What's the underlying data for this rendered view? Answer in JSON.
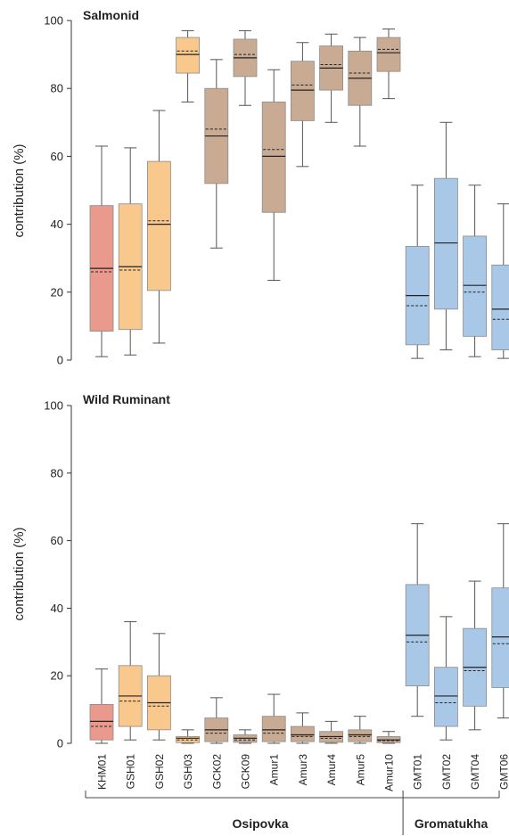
{
  "chart_data": [
    {
      "type": "box",
      "title": "Salmonid",
      "ylabel": "contribution (%)",
      "ylim": [
        0,
        100
      ],
      "yticks": [
        0,
        20,
        40,
        60,
        80,
        100
      ],
      "boxes": [
        {
          "category": "KHM01",
          "color": "#ea9a8c",
          "min": 1,
          "q1": 8.5,
          "median": 27,
          "mean": 26,
          "q3": 45.5,
          "max": 63
        },
        {
          "category": "GSH01",
          "color": "#f8c88c",
          "min": 1.5,
          "q1": 9,
          "median": 27.5,
          "mean": 26.5,
          "q3": 46,
          "max": 62.5
        },
        {
          "category": "GSH02",
          "color": "#f8c88c",
          "min": 5,
          "q1": 20.5,
          "median": 40,
          "mean": 41,
          "q3": 58.5,
          "max": 73.5
        },
        {
          "category": "GSH03",
          "color": "#f8c88c",
          "min": 76,
          "q1": 84.5,
          "median": 90,
          "mean": 91,
          "q3": 95,
          "max": 97
        },
        {
          "category": "GCK02",
          "color": "#c9ab93",
          "min": 33,
          "q1": 52,
          "median": 66,
          "mean": 68,
          "q3": 80,
          "max": 88.5
        },
        {
          "category": "GCK09",
          "color": "#c9ab93",
          "min": 75,
          "q1": 83.5,
          "median": 89,
          "mean": 90,
          "q3": 94.5,
          "max": 97
        },
        {
          "category": "Amur1",
          "color": "#c9ab93",
          "min": 23.5,
          "q1": 43.5,
          "median": 60,
          "mean": 62,
          "q3": 76,
          "max": 85.5
        },
        {
          "category": "Amur3",
          "color": "#c9ab93",
          "min": 57,
          "q1": 70.5,
          "median": 79.5,
          "mean": 81,
          "q3": 88,
          "max": 93.5
        },
        {
          "category": "Amur4",
          "color": "#c9ab93",
          "min": 70,
          "q1": 79.5,
          "median": 86,
          "mean": 87,
          "q3": 92.5,
          "max": 96
        },
        {
          "category": "Amur5",
          "color": "#c9ab93",
          "min": 63,
          "q1": 75,
          "median": 83,
          "mean": 84.5,
          "q3": 91,
          "max": 95
        },
        {
          "category": "Amur10",
          "color": "#c9ab93",
          "min": 77,
          "q1": 85,
          "median": 90.5,
          "mean": 91.5,
          "q3": 95,
          "max": 97.5
        },
        {
          "category": "GMT01",
          "color": "#a9c8e8",
          "min": 0.5,
          "q1": 4.5,
          "median": 19,
          "mean": 16,
          "q3": 33.5,
          "max": 51.5
        },
        {
          "category": "GMT02",
          "color": "#a9c8e8",
          "min": 3,
          "q1": 15,
          "median": 34.5,
          "mean": 34.5,
          "q3": 53.5,
          "max": 70
        },
        {
          "category": "GMT04",
          "color": "#a9c8e8",
          "min": 1,
          "q1": 7,
          "median": 22,
          "mean": 20,
          "q3": 36.5,
          "max": 51.5
        },
        {
          "category": "GMT06",
          "color": "#a9c8e8",
          "min": 0.5,
          "q1": 3,
          "median": 15,
          "mean": 12,
          "q3": 28,
          "max": 46
        }
      ]
    },
    {
      "type": "box",
      "title": "Wild Ruminant",
      "ylabel": "contribution (%)",
      "ylim": [
        0,
        100
      ],
      "yticks": [
        0,
        20,
        40,
        60,
        80,
        100
      ],
      "boxes": [
        {
          "category": "KHM01",
          "color": "#ea9a8c",
          "min": 0,
          "q1": 1,
          "median": 6.5,
          "mean": 5,
          "q3": 11.5,
          "max": 22
        },
        {
          "category": "GSH01",
          "color": "#f8c88c",
          "min": 1,
          "q1": 5,
          "median": 14,
          "mean": 12.5,
          "q3": 23,
          "max": 36
        },
        {
          "category": "GSH02",
          "color": "#f8c88c",
          "min": 1,
          "q1": 4,
          "median": 12,
          "mean": 11,
          "q3": 20,
          "max": 32.5
        },
        {
          "category": "GSH03",
          "color": "#f8c88c",
          "min": 0,
          "q1": 0.2,
          "median": 1.5,
          "mean": 1,
          "q3": 2,
          "max": 4
        },
        {
          "category": "GCK02",
          "color": "#c9ab93",
          "min": 0,
          "q1": 0.5,
          "median": 4,
          "mean": 3,
          "q3": 7.5,
          "max": 13.5
        },
        {
          "category": "GCK09",
          "color": "#c9ab93",
          "min": 0,
          "q1": 0.3,
          "median": 1.5,
          "mean": 1,
          "q3": 2.5,
          "max": 4
        },
        {
          "category": "Amur1",
          "color": "#c9ab93",
          "min": 0,
          "q1": 0.5,
          "median": 4,
          "mean": 3,
          "q3": 8,
          "max": 14.5
        },
        {
          "category": "Amur3",
          "color": "#c9ab93",
          "min": 0,
          "q1": 0.5,
          "median": 2.5,
          "mean": 2,
          "q3": 5,
          "max": 9
        },
        {
          "category": "Amur4",
          "color": "#c9ab93",
          "min": 0,
          "q1": 0.3,
          "median": 2,
          "mean": 1.5,
          "q3": 3.5,
          "max": 6.5
        },
        {
          "category": "Amur5",
          "color": "#c9ab93",
          "min": 0,
          "q1": 0.5,
          "median": 2.5,
          "mean": 2,
          "q3": 4,
          "max": 8
        },
        {
          "category": "Amur10",
          "color": "#c9ab93",
          "min": 0,
          "q1": 0.2,
          "median": 1,
          "mean": 0.8,
          "q3": 2,
          "max": 3.5
        },
        {
          "category": "GMT01",
          "color": "#a9c8e8",
          "min": 8,
          "q1": 17,
          "median": 32,
          "mean": 30,
          "q3": 47,
          "max": 65
        },
        {
          "category": "GMT02",
          "color": "#a9c8e8",
          "min": 1,
          "q1": 5,
          "median": 14,
          "mean": 12,
          "q3": 22.5,
          "max": 37.5
        },
        {
          "category": "GMT04",
          "color": "#a9c8e8",
          "min": 4,
          "q1": 11,
          "median": 22.5,
          "mean": 21.5,
          "q3": 34,
          "max": 48
        },
        {
          "category": "GMT06",
          "color": "#a9c8e8",
          "min": 7.5,
          "q1": 16.5,
          "median": 31.5,
          "mean": 29.5,
          "q3": 46,
          "max": 65
        }
      ]
    }
  ],
  "categories": [
    "KHM01",
    "GSH01",
    "GSH02",
    "GSH03",
    "GCK02",
    "GCK09",
    "Amur1",
    "Amur3",
    "Amur4",
    "Amur5",
    "Amur10",
    "GMT01",
    "GMT02",
    "GMT04",
    "GMT06"
  ],
  "groups": [
    {
      "name": "Osipovka",
      "first": 0,
      "last": 10
    },
    {
      "name": "Gromatukha",
      "first": 11,
      "last": 14
    }
  ]
}
